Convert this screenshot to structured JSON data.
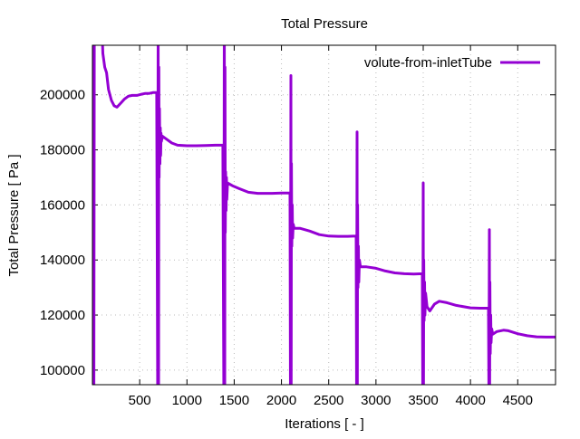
{
  "chart_data": {
    "type": "line",
    "title": "Total Pressure",
    "xlabel": "Iterations [ - ]",
    "ylabel": "Total Pressure [ Pa ]",
    "xlim": [
      0,
      4900
    ],
    "ylim": [
      94700,
      218000
    ],
    "xticks": [
      500,
      1000,
      1500,
      2000,
      2500,
      3000,
      3500,
      4000,
      4500
    ],
    "yticks": [
      100000,
      120000,
      140000,
      160000,
      180000,
      200000
    ],
    "xtick_labels": [
      "500",
      "1000",
      "1500",
      "2000",
      "2500",
      "3000",
      "3500",
      "4000",
      "4500"
    ],
    "ytick_labels": [
      "100000",
      "120000",
      "140000",
      "160000",
      "180000",
      "200000"
    ],
    "grid": true,
    "legend_position": "top-right",
    "series": [
      {
        "name": "volute-from-inletTube",
        "color": "#9400d3",
        "x": [
          0,
          5,
          10,
          15,
          20,
          30,
          60,
          100,
          110,
          130,
          150,
          170,
          200,
          230,
          260,
          300,
          340,
          380,
          420,
          470,
          520,
          560,
          600,
          640,
          680,
          690,
          695,
          700,
          703,
          706,
          710,
          714,
          718,
          722,
          726,
          730,
          740,
          780,
          840,
          900,
          1000,
          1100,
          1200,
          1300,
          1380,
          1390,
          1395,
          1400,
          1403,
          1406,
          1410,
          1414,
          1418,
          1422,
          1430,
          1480,
          1550,
          1650,
          1750,
          1900,
          2000,
          2090,
          2095,
          2100,
          2103,
          2106,
          2110,
          2114,
          2118,
          2125,
          2135,
          2200,
          2300,
          2400,
          2500,
          2600,
          2700,
          2790,
          2795,
          2800,
          2803,
          2806,
          2810,
          2814,
          2818,
          2825,
          2835,
          2900,
          3000,
          3100,
          3200,
          3300,
          3400,
          3490,
          3495,
          3500,
          3503,
          3506,
          3510,
          3514,
          3518,
          3525,
          3540,
          3570,
          3620,
          3670,
          3750,
          3850,
          4000,
          4100,
          4190,
          4195,
          4200,
          4203,
          4206,
          4210,
          4214,
          4218,
          4225,
          4235,
          4280,
          4350,
          4400,
          4500,
          4600,
          4700,
          4800,
          4900
        ],
        "y": [
          150000,
          90000,
          240000,
          90000,
          230000,
          225000,
          230000,
          225000,
          215000,
          210000,
          208000,
          202000,
          198000,
          196000,
          195500,
          197000,
          198500,
          199500,
          199800,
          199800,
          200200,
          200500,
          200500,
          200800,
          200800,
          90000,
          230000,
          90000,
          210000,
          170000,
          195000,
          175000,
          188000,
          178000,
          186000,
          183000,
          185000,
          184000,
          182500,
          181700,
          181500,
          181500,
          181600,
          181700,
          181700,
          90000,
          240000,
          90000,
          210000,
          150000,
          172000,
          158000,
          170000,
          162000,
          168000,
          167000,
          166000,
          164600,
          164200,
          164200,
          164300,
          164300,
          90000,
          207000,
          90000,
          175000,
          145000,
          160000,
          148000,
          153000,
          151500,
          151500,
          150500,
          149200,
          148700,
          148600,
          148600,
          148700,
          90000,
          186500,
          90000,
          160000,
          130000,
          145000,
          132000,
          140000,
          137500,
          137500,
          137000,
          136000,
          135300,
          135000,
          134900,
          135000,
          90000,
          168000,
          90000,
          140000,
          118000,
          132000,
          120000,
          128000,
          123000,
          121500,
          124000,
          125000,
          124500,
          123500,
          122600,
          122500,
          122500,
          90000,
          151000,
          90000,
          132000,
          106000,
          120000,
          110000,
          115000,
          113000,
          114000,
          114500,
          114300,
          113200,
          112500,
          112100,
          112000,
          112000
        ]
      }
    ]
  }
}
